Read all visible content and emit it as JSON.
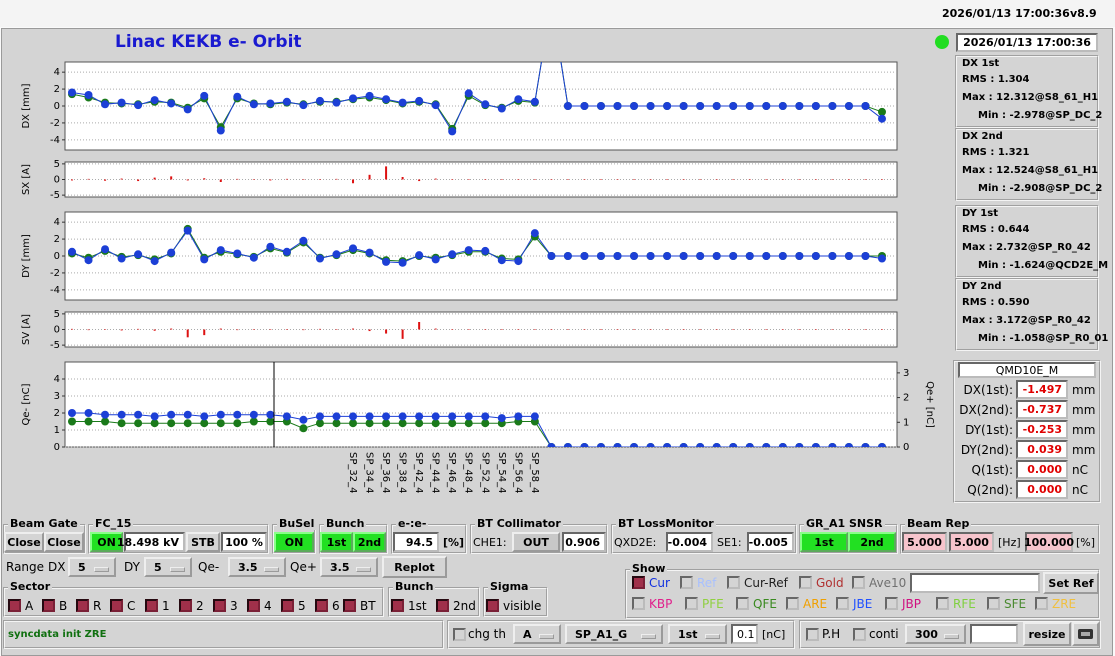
{
  "header": {
    "timestamp": "2026/01/13 17:00:36",
    "version": "v8.9",
    "title": "Linac KEKB e- Orbit",
    "clock": "2026/01/13 17:00:36"
  },
  "chart_data": [
    {
      "type": "line",
      "ylabel": "DX [mm]",
      "ylim": [
        -5.2,
        5.2
      ],
      "yticks": [
        -4,
        -2,
        0,
        2,
        4
      ],
      "grid": true,
      "series": [
        {
          "color": "#1a7a1a",
          "values": [
            1.4,
            1.0,
            0.4,
            0.3,
            0.2,
            0.5,
            0.4,
            -0.2,
            0.9,
            -2.5,
            0.9,
            0.3,
            0.2,
            0.4,
            0.2,
            0.5,
            0.5,
            0.8,
            1.0,
            0.7,
            0.3,
            0.5,
            0.2,
            -2.7,
            1.2,
            0.1,
            -0.2,
            0.6,
            0.4,
            12.5,
            0,
            0,
            0,
            0,
            0,
            0,
            0,
            0,
            0,
            0,
            0,
            0,
            0,
            0,
            0,
            0,
            0,
            0,
            0,
            -0.7
          ]
        },
        {
          "color": "#1c3fd6",
          "values": [
            1.6,
            1.3,
            0.2,
            0.4,
            0.1,
            0.7,
            0.3,
            -0.4,
            1.2,
            -2.9,
            1.1,
            0.2,
            0.3,
            0.5,
            0.1,
            0.6,
            0.4,
            0.9,
            1.2,
            0.8,
            0.4,
            0.6,
            0.1,
            -3.0,
            1.5,
            0.2,
            -0.3,
            0.8,
            0.5,
            12.3,
            0,
            0,
            0,
            0,
            0,
            0,
            0,
            0,
            0,
            0,
            0,
            0,
            0,
            0,
            0,
            0,
            0,
            0,
            0,
            -1.5
          ]
        }
      ]
    },
    {
      "type": "bar",
      "ylabel": "SX [A]",
      "ylim": [
        -5.6,
        5.6
      ],
      "yticks": [
        -5,
        0,
        5
      ],
      "grid": true,
      "color": "#dd1111",
      "values": [
        -0.3,
        0.2,
        -0.4,
        0.3,
        -0.5,
        0.6,
        1.0,
        -0.3,
        0.4,
        -0.8,
        0.2,
        0.1,
        -0.3,
        0.2,
        0,
        0.1,
        0.2,
        -1.2,
        1.5,
        4.2,
        0.8,
        -0.5,
        0.3,
        0,
        0,
        0.1,
        0,
        0,
        0,
        0,
        0,
        0,
        0,
        0,
        0,
        0,
        0,
        0,
        0,
        0,
        0,
        0,
        0,
        0,
        0,
        0,
        0,
        0,
        0,
        0
      ]
    },
    {
      "type": "line",
      "ylabel": "DY [mm]",
      "ylim": [
        -5.2,
        5.2
      ],
      "yticks": [
        -4,
        -2,
        0,
        2,
        4
      ],
      "grid": true,
      "series": [
        {
          "color": "#1a7a1a",
          "values": [
            0.3,
            -0.2,
            0.6,
            -0.1,
            0.1,
            -0.4,
            0.3,
            3.2,
            -0.2,
            0.5,
            0.2,
            -0.1,
            0.9,
            0.4,
            1.6,
            -0.2,
            0.1,
            0.7,
            0.3,
            -0.5,
            -0.6,
            0.0,
            -0.2,
            0.1,
            0.5,
            0.5,
            -0.3,
            -0.4,
            2.3,
            0,
            0,
            0,
            0,
            0,
            0,
            0,
            0,
            0,
            0,
            0,
            0,
            0,
            0,
            0,
            0,
            0,
            0,
            0,
            0,
            0.0
          ]
        },
        {
          "color": "#1c3fd6",
          "values": [
            0.5,
            -0.5,
            0.8,
            -0.3,
            0.2,
            -0.6,
            0.4,
            3.0,
            -0.4,
            0.7,
            0.3,
            -0.2,
            1.1,
            0.5,
            1.8,
            -0.3,
            0.2,
            0.9,
            0.4,
            -0.7,
            -0.8,
            0.1,
            -0.4,
            0.2,
            0.7,
            0.6,
            -0.5,
            -0.6,
            2.7,
            0,
            0,
            0,
            0,
            0,
            0,
            0,
            0,
            0,
            0,
            0,
            0,
            0,
            0,
            0,
            0,
            0,
            0,
            0,
            0,
            -0.3
          ]
        }
      ]
    },
    {
      "type": "bar",
      "ylabel": "SV [A]",
      "ylim": [
        -5.6,
        5.6
      ],
      "yticks": [
        -5,
        0,
        5
      ],
      "grid": true,
      "color": "#dd1111",
      "values": [
        0.2,
        -0.2,
        0.1,
        -0.3,
        0.2,
        -0.4,
        0.3,
        -2.5,
        -1.8,
        0.3,
        -0.2,
        0.1,
        0,
        0.1,
        -0.2,
        0.2,
        0.1,
        0.3,
        -0.5,
        -1.3,
        -3.0,
        2.4,
        0.3,
        0,
        0,
        0,
        0,
        0,
        0,
        0,
        0,
        0,
        0,
        0,
        0,
        0,
        0,
        0,
        0,
        0,
        0,
        0,
        0,
        0,
        0,
        0,
        0,
        0,
        0,
        0
      ]
    },
    {
      "type": "line",
      "ylabel": "Qe- [nC]",
      "y2label": "Qe+ [nC]",
      "ylim": [
        0,
        5
      ],
      "yticks": [
        0,
        1,
        2,
        3,
        4
      ],
      "y2lim": [
        0,
        3.44
      ],
      "y2ticks": [
        0,
        1,
        2,
        3
      ],
      "grid": true,
      "categories": [
        null,
        null,
        null,
        null,
        null,
        null,
        null,
        null,
        null,
        null,
        null,
        null,
        null,
        null,
        null,
        null,
        null,
        "SP_32_4",
        "SP_34_4",
        "SP_36_4",
        "SP_38_4",
        "SP_42_4",
        "SP_44_4",
        "SP_46_4",
        "SP_48_4",
        "SP_52_4",
        "SP_54_4",
        "SP_56_4",
        "SP_58_4",
        null,
        null,
        null,
        null,
        null,
        null,
        null,
        null,
        null,
        null,
        null,
        null,
        null,
        null,
        null,
        null,
        null,
        null,
        null,
        null,
        null
      ],
      "series": [
        {
          "color": "#1a7a1a",
          "values": [
            1.5,
            1.5,
            1.5,
            1.4,
            1.4,
            1.4,
            1.4,
            1.4,
            1.4,
            1.4,
            1.4,
            1.5,
            1.5,
            1.5,
            1.1,
            1.4,
            1.4,
            1.4,
            1.4,
            1.4,
            1.4,
            1.4,
            1.4,
            1.4,
            1.4,
            1.4,
            1.4,
            1.5,
            1.5,
            0,
            0,
            0,
            0,
            0,
            0,
            0,
            0,
            0,
            0,
            0,
            0,
            0,
            0,
            0,
            0,
            0,
            0,
            0,
            0,
            0
          ]
        },
        {
          "color": "#1c3fd6",
          "values": [
            2.0,
            2.0,
            1.9,
            1.9,
            1.9,
            1.8,
            1.9,
            1.9,
            1.8,
            1.9,
            1.9,
            1.9,
            1.9,
            1.8,
            1.6,
            1.8,
            1.8,
            1.8,
            1.8,
            1.8,
            1.8,
            1.8,
            1.8,
            1.8,
            1.8,
            1.8,
            1.7,
            1.8,
            1.8,
            0,
            0,
            0,
            0,
            0,
            0,
            0,
            0,
            0,
            0,
            0,
            0,
            0,
            0,
            0,
            0,
            0,
            0,
            0,
            0,
            0
          ]
        }
      ]
    }
  ],
  "stats": [
    {
      "title": "DX 1st",
      "lines": [
        "RMS :  1.304",
        "Max :  12.312@S8_61_H1",
        "Min :  -2.978@SP_DC_2"
      ]
    },
    {
      "title": "DX 2nd",
      "lines": [
        "RMS :  1.321",
        "Max :  12.524@S8_61_H1",
        "Min :  -2.908@SP_DC_2"
      ]
    },
    {
      "title": "DY 1st",
      "lines": [
        "RMS :  0.644",
        "Max :  2.732@SP_R0_42",
        "Min :  -1.624@QCD2E_M"
      ]
    },
    {
      "title": "DY 2nd",
      "lines": [
        "RMS :  0.590",
        "Max :  3.172@SP_R0_42",
        "Min :  -1.058@SP_R0_01"
      ]
    }
  ],
  "monitor": {
    "title": "QMD10E_M",
    "rows": [
      {
        "label": "DX(1st):",
        "value": "-1.497",
        "unit": "mm"
      },
      {
        "label": "DX(2nd):",
        "value": "-0.737",
        "unit": "mm"
      },
      {
        "label": "DY(1st):",
        "value": "-0.253",
        "unit": "mm"
      },
      {
        "label": "DY(2nd):",
        "value": "0.039",
        "unit": "mm"
      },
      {
        "label": "Q(1st):",
        "value": "0.000",
        "unit": "nC"
      },
      {
        "label": "Q(2nd):",
        "value": "0.000",
        "unit": "nC"
      }
    ]
  },
  "controls": {
    "beam_gate": {
      "title": "Beam Gate",
      "buttons": [
        "Close",
        "Close"
      ]
    },
    "fc": {
      "title": "FC_15",
      "state": "ON",
      "voltage": "18.498 kV",
      "mode": "STB",
      "percent": "100 %"
    },
    "busel": {
      "title": "BuSel",
      "state": "ON"
    },
    "bunch": {
      "title": "Bunch",
      "buttons": [
        "1st",
        "2nd"
      ]
    },
    "ratio": {
      "title": "e-:e-",
      "value": "94.5",
      "unit": "[%]"
    },
    "collimator": {
      "title": "BT Collimator",
      "label": "CHE1:",
      "state": "OUT",
      "value": "0.906"
    },
    "loss": {
      "title": "BT LossMonitor",
      "items": [
        {
          "label": "QXD2E:",
          "value": "-0.004"
        },
        {
          "label": "SE1:",
          "value": "-0.005"
        }
      ]
    },
    "snsr": {
      "title": "GR_A1  SNSR",
      "buttons": [
        "1st",
        "2nd"
      ]
    },
    "rep": {
      "title": "Beam Rep",
      "values": [
        "5.000",
        "5.000"
      ],
      "unit": "[Hz]",
      "percent": "100.000",
      "percent_unit": "[%]"
    },
    "range": {
      "title": "Range",
      "items": [
        {
          "label": "DX",
          "value": "5"
        },
        {
          "label": "DY",
          "value": "5"
        },
        {
          "label": "Qe-",
          "value": "3.5"
        },
        {
          "label": "Qe+",
          "value": "3.5"
        }
      ],
      "button": "Replot"
    },
    "sector": {
      "title": "Sector",
      "items": [
        {
          "label": "A",
          "checked": true
        },
        {
          "label": "B",
          "checked": true
        },
        {
          "label": "R",
          "checked": true
        },
        {
          "label": "C",
          "checked": true
        },
        {
          "label": "1",
          "checked": true
        },
        {
          "label": "2",
          "checked": true
        },
        {
          "label": "3",
          "checked": true
        },
        {
          "label": "4",
          "checked": true
        },
        {
          "label": "5",
          "checked": true
        },
        {
          "label": "6",
          "checked": true
        },
        {
          "label": "BT",
          "checked": true
        }
      ]
    },
    "bunch_sel": {
      "title": "Bunch",
      "items": [
        {
          "label": "1st",
          "checked": true
        },
        {
          "label": "2nd",
          "checked": true
        }
      ]
    },
    "sigma": {
      "title": "Sigma",
      "items": [
        {
          "label": "visible",
          "checked": true
        }
      ]
    },
    "show": {
      "title": "Show",
      "button": "Set Ref",
      "row1": [
        {
          "label": "Cur",
          "color": "#1030e0",
          "checked": true
        },
        {
          "label": "Ref",
          "color": "#a8c0ff",
          "checked": false
        },
        {
          "label": "Cur-Ref",
          "color": "#202020",
          "checked": false
        },
        {
          "label": "Gold",
          "color": "#b03030",
          "checked": false
        },
        {
          "label": "Ave10",
          "color": "#707070",
          "checked": false
        }
      ],
      "row2": [
        {
          "label": "KBP",
          "color": "#e0208c",
          "checked": false
        },
        {
          "label": "PFE",
          "color": "#90d040",
          "checked": false
        },
        {
          "label": "QFE",
          "color": "#3a8a20",
          "checked": false
        },
        {
          "label": "ARE",
          "color": "#f0a000",
          "checked": false
        },
        {
          "label": "JBE",
          "color": "#2050ff",
          "checked": false
        },
        {
          "label": "JBP",
          "color": "#d01080",
          "checked": false
        },
        {
          "label": "RFE",
          "color": "#80d040",
          "checked": false
        },
        {
          "label": "SFE",
          "color": "#4a8a30",
          "checked": false
        },
        {
          "label": "ZRE",
          "color": "#f0c040",
          "checked": false
        }
      ]
    },
    "status": "syncdata init ZRE",
    "bottom": {
      "chg_th": "chg th",
      "sel1": "A",
      "sel2": "SP_A1_G",
      "sel3": "1st",
      "value": "0.1",
      "unit": "[nC]",
      "ph": "P.H",
      "conti": "conti",
      "count": "300",
      "resize": "resize"
    }
  }
}
